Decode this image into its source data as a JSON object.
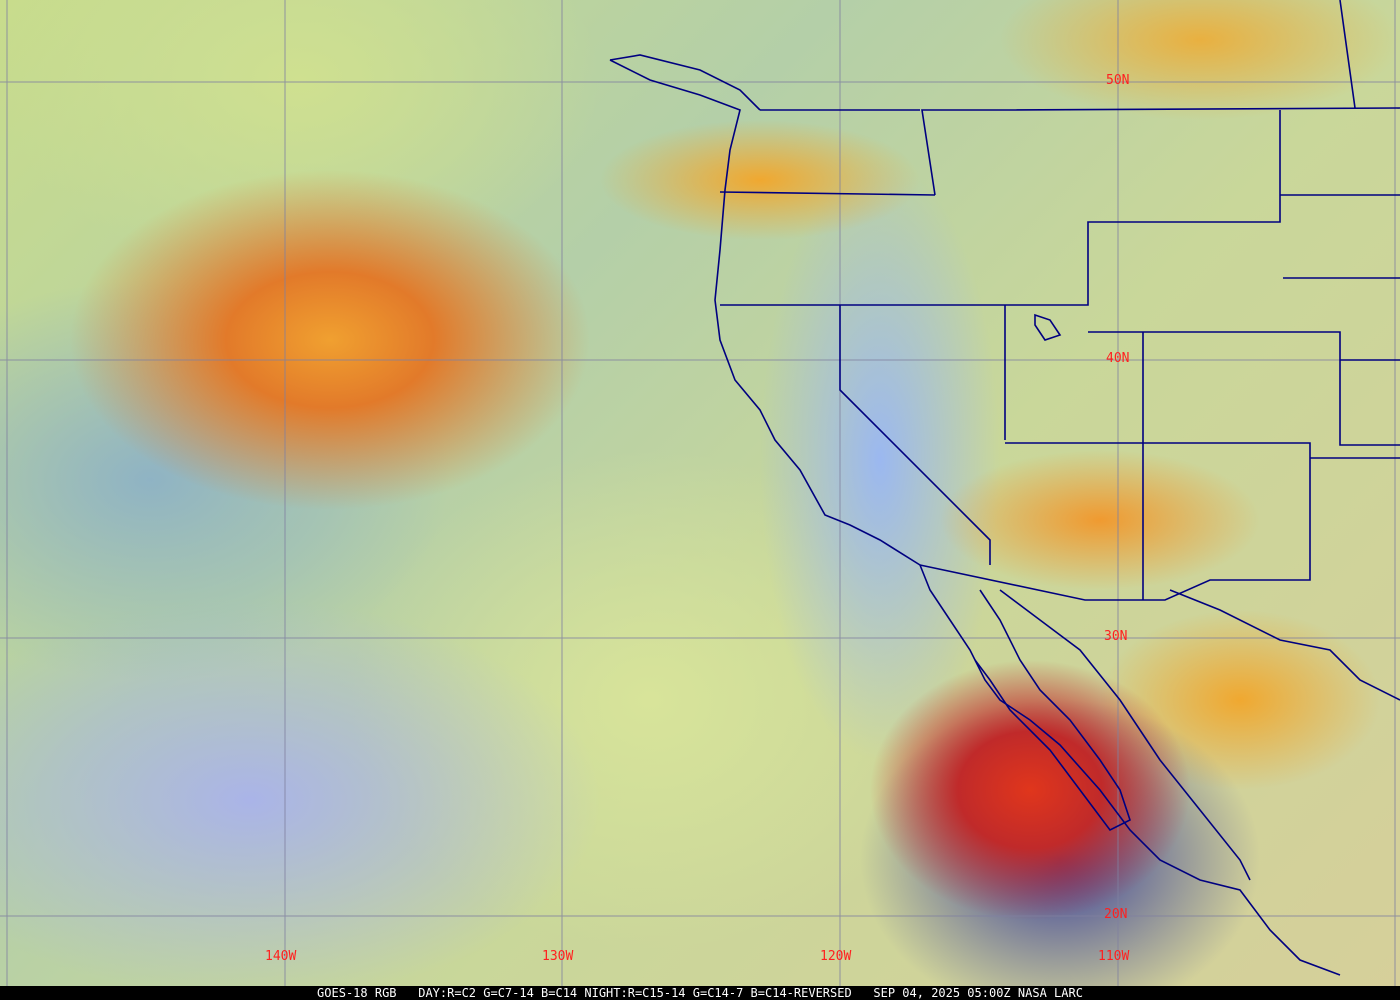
{
  "map": {
    "latitude_labels": [
      "50N",
      "40N",
      "30N",
      "20N"
    ],
    "longitude_labels": [
      "140W",
      "130W",
      "120W",
      "110W"
    ],
    "grid_color": "#8080a0",
    "boundary_color": "#000080",
    "label_color": "#ff2020"
  },
  "caption": {
    "product": "GOES-18 RGB",
    "recipe": "DAY:R=C2 G=C7-14 B=C14 NIGHT:R=C15-14 G=C14-7 B=C14-REVERSED",
    "timestamp": "SEP 04, 2025 05:00Z",
    "credit": "NASA LARC"
  }
}
